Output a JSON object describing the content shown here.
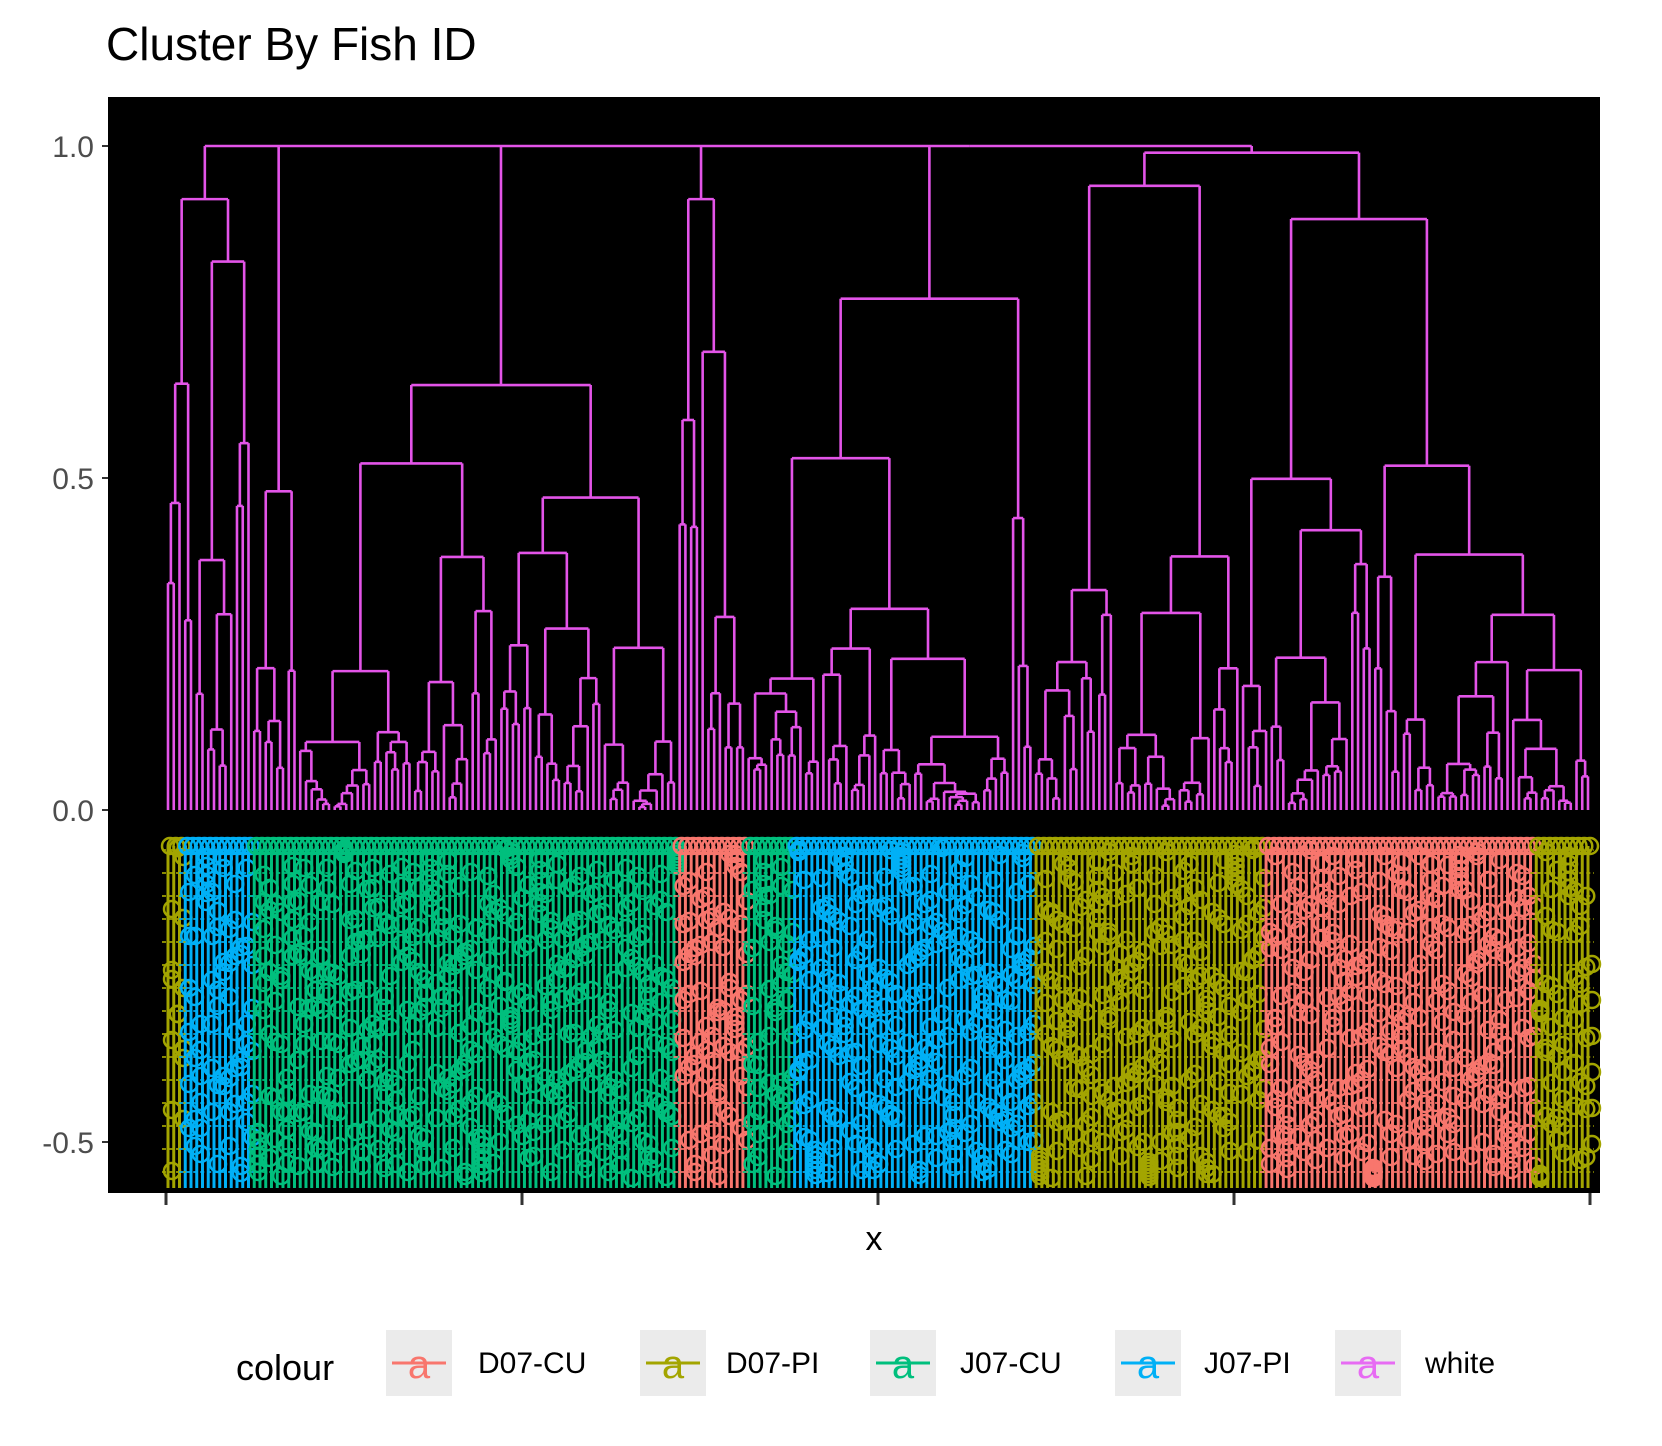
{
  "chart_data": {
    "type": "dendrogram",
    "title": "Cluster By Fish ID",
    "xlabel": "x",
    "ylabel": "",
    "ylim": [
      -0.575,
      1.075
    ],
    "y_ticks": [
      -0.5,
      0.0,
      0.5,
      1.0
    ],
    "y_tick_labels": [
      "-0.5",
      "0.0",
      "0.5",
      "1.0"
    ],
    "x_tick_count": 5,
    "background": "#000000",
    "grid": false,
    "dendrogram_color": "#E354E8",
    "leaf_count": 248,
    "leaf_label_groups": [
      {
        "group": "D07-PI",
        "from_leaf": 0,
        "to_leaf": 2
      },
      {
        "group": "J07-PI",
        "from_leaf": 3,
        "to_leaf": 14
      },
      {
        "group": "J07-CU",
        "from_leaf": 15,
        "to_leaf": 88
      },
      {
        "group": "D07-CU",
        "from_leaf": 89,
        "to_leaf": 100
      },
      {
        "group": "J07-CU",
        "from_leaf": 101,
        "to_leaf": 108
      },
      {
        "group": "J07-PI",
        "from_leaf": 109,
        "to_leaf": 150
      },
      {
        "group": "D07-PI",
        "from_leaf": 151,
        "to_leaf": 190
      },
      {
        "group": "D07-CU",
        "from_leaf": 191,
        "to_leaf": 237
      },
      {
        "group": "D07-PI",
        "from_leaf": 238,
        "to_leaf": 247
      }
    ],
    "clusters": [
      {
        "height": 1.0,
        "x_from": 0.02,
        "x_to": 0.78
      },
      {
        "height": 0.99,
        "x_from": 0.78,
        "x_to": 0.96
      },
      {
        "height": 0.92,
        "x_from": 0.0,
        "x_to": 0.04
      },
      {
        "height": 0.92,
        "x_from": 0.375,
        "x_to": 0.395
      },
      {
        "height": 0.91,
        "x_from": 0.62,
        "x_to": 0.69
      },
      {
        "height": 0.94,
        "x_from": 0.77,
        "x_to": 0.9
      },
      {
        "height": 0.89,
        "x_from": 0.83,
        "x_to": 0.99
      },
      {
        "height": 0.77,
        "x_from": 0.42,
        "x_to": 0.52
      },
      {
        "height": 0.72,
        "x_from": 0.5,
        "x_to": 0.58
      },
      {
        "height": 0.69,
        "x_from": 0.77,
        "x_to": 0.82
      },
      {
        "height": 0.69,
        "x_from": 0.83,
        "x_to": 0.95
      },
      {
        "height": 0.64,
        "x_from": 0.1,
        "x_to": 0.12
      },
      {
        "height": 0.6,
        "x_from": 0.37,
        "x_to": 0.4
      },
      {
        "height": 0.58,
        "x_from": 0.83,
        "x_to": 0.97
      },
      {
        "height": 0.35,
        "x_from": 0.78,
        "x_to": 0.89
      }
    ],
    "legend": {
      "title": "colour",
      "position": "bottom",
      "entries": [
        {
          "label": "D07-CU",
          "color": "#F8766D"
        },
        {
          "label": "D07-PI",
          "color": "#A3A500"
        },
        {
          "label": "J07-CU",
          "color": "#00BF7D"
        },
        {
          "label": "J07-PI",
          "color": "#00B0F6"
        },
        {
          "label": "white",
          "color": "#E76BF3"
        }
      ],
      "key_glyph": "a"
    }
  }
}
